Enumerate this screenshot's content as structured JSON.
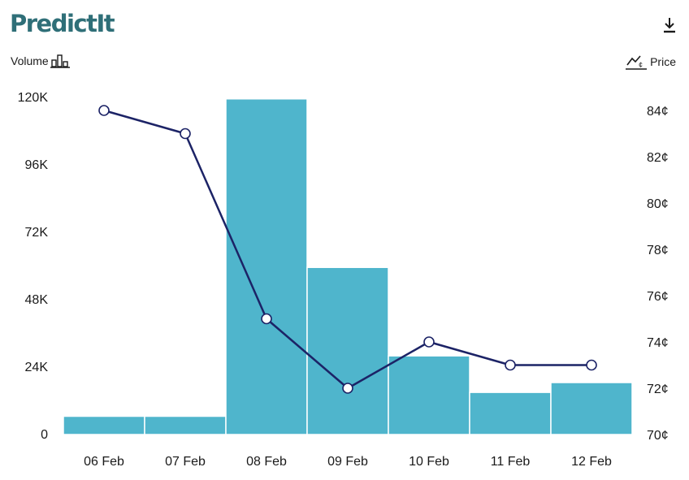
{
  "header": {
    "logo_text": "PredictIt",
    "download_icon": "download-icon"
  },
  "legend": {
    "volume_label": "Volume",
    "volume_icon": "bar-chart-icon",
    "price_label": "Price",
    "price_icon": "price-line-icon"
  },
  "colors": {
    "bar": "#4fb5cc",
    "bar_edge": "#ffffff",
    "line": "#1c2366",
    "marker_fill": "#ffffff",
    "logo": "#2f6f78"
  },
  "chart_data": {
    "type": "bar+line",
    "categories": [
      "06 Feb",
      "07 Feb",
      "08 Feb",
      "09 Feb",
      "10 Feb",
      "11 Feb",
      "12 Feb"
    ],
    "series": [
      {
        "name": "Volume",
        "type": "bar",
        "axis": "left",
        "values": [
          6500,
          6500,
          119500,
          59500,
          28000,
          15000,
          18500
        ]
      },
      {
        "name": "Price",
        "type": "line",
        "axis": "right",
        "values": [
          84,
          83,
          75,
          72,
          74,
          73,
          73
        ]
      }
    ],
    "y_left": {
      "min": 0,
      "max": 120000,
      "ticks": [
        0,
        24000,
        48000,
        72000,
        96000,
        120000
      ],
      "tick_labels": [
        "0",
        "24K",
        "48K",
        "72K",
        "96K",
        "120K"
      ]
    },
    "y_right": {
      "min": 70,
      "max": 84,
      "ticks": [
        70,
        72,
        74,
        76,
        78,
        80,
        82,
        84
      ],
      "tick_labels": [
        "70¢",
        "72¢",
        "74¢",
        "76¢",
        "78¢",
        "80¢",
        "82¢",
        "84¢"
      ]
    },
    "grid": false
  }
}
